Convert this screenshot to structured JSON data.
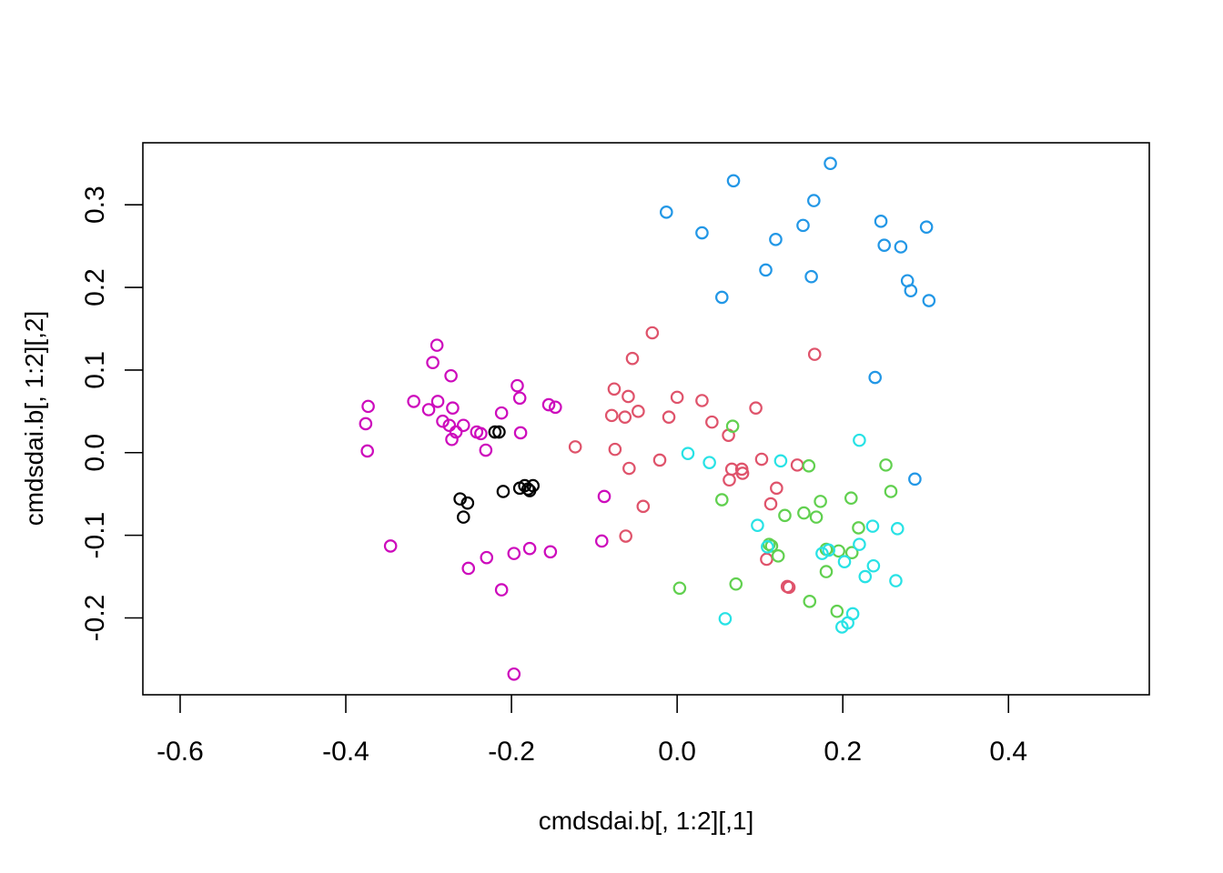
{
  "chart_data": {
    "type": "scatter",
    "title": "",
    "xlabel": "cmdsdai.b[, 1:2][,1]",
    "ylabel": "cmdsdai.b[, 1:2][,2]",
    "xlim": [
      -0.645,
      0.57
    ],
    "ylim": [
      -0.293,
      0.375
    ],
    "xticks": [
      -0.6,
      -0.4,
      -0.2,
      0.0,
      0.2,
      0.4
    ],
    "xtick_labels": [
      "-0.6",
      "-0.4",
      "-0.2",
      "0.0",
      "0.2",
      "0.4"
    ],
    "yticks": [
      -0.2,
      -0.1,
      0.0,
      0.1,
      0.2,
      0.3
    ],
    "ytick_labels": [
      "-0.2",
      "-0.1",
      "0.0",
      "0.1",
      "0.2",
      "0.3"
    ],
    "grid": false,
    "marker": "open-circle",
    "series": [
      {
        "color": "#000000",
        "points": [
          [
            -0.22,
            0.025
          ],
          [
            -0.215,
            0.025
          ],
          [
            -0.21,
            -0.047
          ],
          [
            -0.19,
            -0.043
          ],
          [
            -0.184,
            -0.04
          ],
          [
            -0.18,
            -0.044
          ],
          [
            -0.178,
            -0.046
          ],
          [
            -0.174,
            -0.04
          ],
          [
            -0.262,
            -0.056
          ],
          [
            -0.253,
            -0.061
          ],
          [
            -0.258,
            -0.078
          ]
        ]
      },
      {
        "color": "#DF536B",
        "points": [
          [
            -0.03,
            0.145
          ],
          [
            -0.054,
            0.114
          ],
          [
            -0.076,
            0.077
          ],
          [
            -0.059,
            0.068
          ],
          [
            -0.079,
            0.045
          ],
          [
            -0.063,
            0.043
          ],
          [
            -0.047,
            0.05
          ],
          [
            -0.01,
            0.043
          ],
          [
            0.0,
            0.067
          ],
          [
            0.03,
            0.063
          ],
          [
            0.042,
            0.037
          ],
          [
            0.095,
            0.054
          ],
          [
            0.062,
            0.021
          ],
          [
            -0.123,
            0.007
          ],
          [
            -0.075,
            0.004
          ],
          [
            -0.021,
            -0.009
          ],
          [
            -0.058,
            -0.019
          ],
          [
            0.102,
            -0.008
          ],
          [
            0.145,
            -0.015
          ],
          [
            0.066,
            -0.02
          ],
          [
            0.078,
            -0.02
          ],
          [
            0.079,
            -0.025
          ],
          [
            0.063,
            -0.033
          ],
          [
            0.12,
            -0.043
          ],
          [
            0.113,
            -0.062
          ],
          [
            -0.041,
            -0.065
          ],
          [
            -0.062,
            -0.101
          ],
          [
            0.108,
            -0.129
          ],
          [
            0.133,
            -0.162
          ],
          [
            0.135,
            -0.163
          ],
          [
            0.166,
            0.119
          ]
        ]
      },
      {
        "color": "#61D04F",
        "points": [
          [
            0.067,
            0.032
          ],
          [
            0.159,
            -0.016
          ],
          [
            0.252,
            -0.015
          ],
          [
            0.258,
            -0.047
          ],
          [
            0.21,
            -0.055
          ],
          [
            0.054,
            -0.057
          ],
          [
            0.173,
            -0.059
          ],
          [
            0.153,
            -0.073
          ],
          [
            0.13,
            -0.076
          ],
          [
            0.168,
            -0.078
          ],
          [
            0.219,
            -0.091
          ],
          [
            0.111,
            -0.111
          ],
          [
            0.114,
            -0.113
          ],
          [
            0.18,
            -0.117
          ],
          [
            0.195,
            -0.119
          ],
          [
            0.211,
            -0.121
          ],
          [
            0.122,
            -0.125
          ],
          [
            0.18,
            -0.144
          ],
          [
            0.071,
            -0.159
          ],
          [
            0.003,
            -0.164
          ],
          [
            0.16,
            -0.18
          ],
          [
            0.193,
            -0.192
          ]
        ]
      },
      {
        "color": "#2297E6",
        "points": [
          [
            0.185,
            0.35
          ],
          [
            0.068,
            0.329
          ],
          [
            0.165,
            0.305
          ],
          [
            -0.013,
            0.291
          ],
          [
            0.152,
            0.275
          ],
          [
            0.246,
            0.28
          ],
          [
            0.301,
            0.273
          ],
          [
            0.03,
            0.266
          ],
          [
            0.119,
            0.258
          ],
          [
            0.25,
            0.251
          ],
          [
            0.27,
            0.249
          ],
          [
            0.107,
            0.221
          ],
          [
            0.162,
            0.213
          ],
          [
            0.278,
            0.208
          ],
          [
            0.282,
            0.196
          ],
          [
            0.054,
            0.188
          ],
          [
            0.304,
            0.184
          ],
          [
            0.239,
            0.091
          ],
          [
            0.287,
            -0.032
          ]
        ]
      },
      {
        "color": "#28E2E5",
        "points": [
          [
            0.013,
            -0.001
          ],
          [
            0.039,
            -0.012
          ],
          [
            0.125,
            -0.01
          ],
          [
            0.22,
            0.015
          ],
          [
            0.097,
            -0.088
          ],
          [
            0.236,
            -0.089
          ],
          [
            0.266,
            -0.092
          ],
          [
            0.109,
            -0.114
          ],
          [
            0.175,
            -0.122
          ],
          [
            0.183,
            -0.118
          ],
          [
            0.22,
            -0.111
          ],
          [
            0.202,
            -0.132
          ],
          [
            0.237,
            -0.137
          ],
          [
            0.227,
            -0.15
          ],
          [
            0.264,
            -0.155
          ],
          [
            0.058,
            -0.201
          ],
          [
            0.212,
            -0.195
          ],
          [
            0.206,
            -0.206
          ],
          [
            0.199,
            -0.211
          ]
        ]
      },
      {
        "color": "#CD0BBC",
        "points": [
          [
            -0.29,
            0.13
          ],
          [
            -0.295,
            0.109
          ],
          [
            -0.273,
            0.093
          ],
          [
            -0.373,
            0.056
          ],
          [
            -0.318,
            0.062
          ],
          [
            -0.3,
            0.052
          ],
          [
            -0.289,
            0.062
          ],
          [
            -0.271,
            0.054
          ],
          [
            -0.376,
            0.035
          ],
          [
            -0.283,
            0.038
          ],
          [
            -0.275,
            0.033
          ],
          [
            -0.258,
            0.033
          ],
          [
            -0.267,
            0.025
          ],
          [
            -0.242,
            0.025
          ],
          [
            -0.237,
            0.023
          ],
          [
            -0.272,
            0.016
          ],
          [
            -0.374,
            0.002
          ],
          [
            -0.231,
            0.003
          ],
          [
            -0.212,
            0.048
          ],
          [
            -0.193,
            0.081
          ],
          [
            -0.19,
            0.066
          ],
          [
            -0.155,
            0.058
          ],
          [
            -0.147,
            0.055
          ],
          [
            -0.189,
            0.024
          ],
          [
            -0.23,
            -0.127
          ],
          [
            -0.197,
            -0.122
          ],
          [
            -0.178,
            -0.116
          ],
          [
            -0.153,
            -0.12
          ],
          [
            -0.252,
            -0.14
          ],
          [
            -0.212,
            -0.166
          ],
          [
            -0.346,
            -0.113
          ],
          [
            -0.091,
            -0.107
          ],
          [
            -0.088,
            -0.053
          ],
          [
            -0.197,
            -0.268
          ]
        ]
      }
    ]
  }
}
